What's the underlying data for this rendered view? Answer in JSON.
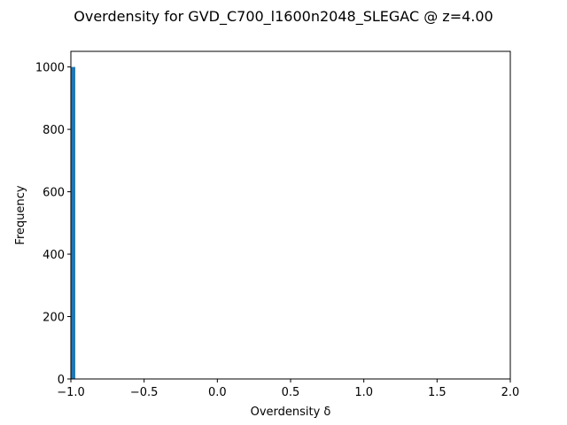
{
  "chart_data": {
    "type": "bar",
    "title": "Overdensity for GVD_C700_l1600n2048_SLEGAC @ z=4.00",
    "xlabel": "Overdensity δ",
    "ylabel": "Frequency",
    "xlim": [
      -1.0,
      2.0
    ],
    "ylim": [
      0,
      1050
    ],
    "xticks": [
      -1.0,
      -0.5,
      0.0,
      0.5,
      1.0,
      1.5,
      2.0
    ],
    "xtick_labels": [
      "−1.0",
      "−0.5",
      "0.0",
      "0.5",
      "1.0",
      "1.5",
      "2.0"
    ],
    "yticks": [
      0,
      200,
      400,
      600,
      800,
      1000
    ],
    "ytick_labels": [
      "0",
      "200",
      "400",
      "600",
      "800",
      "1000"
    ],
    "bars": [
      {
        "x_start": -1.0,
        "x_end": -0.97,
        "value": 1000
      }
    ],
    "bar_color": "#1f77b4",
    "grid": false,
    "legend": "none"
  }
}
